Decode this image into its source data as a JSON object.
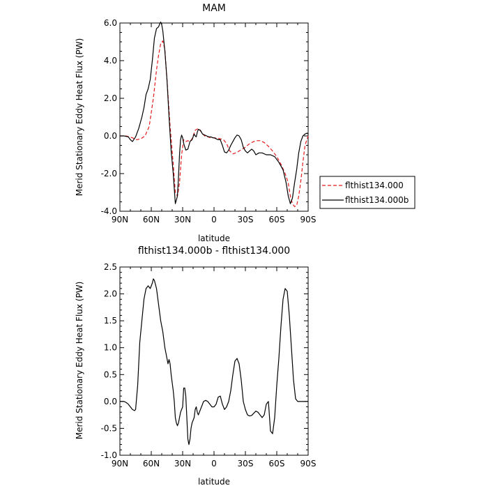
{
  "chart_data": [
    {
      "type": "line",
      "title": "MAM",
      "xlabel": "latitude",
      "ylabel": "Merid Stationary Eddy Heat Flux (PW)",
      "xlim": [
        90,
        -90
      ],
      "ylim": [
        -4,
        6
      ],
      "x_ticks": [
        90,
        60,
        30,
        0,
        -30,
        -60,
        -90
      ],
      "x_tick_labels": [
        "90N",
        "60N",
        "30N",
        "0",
        "30S",
        "60S",
        "90S"
      ],
      "y_ticks": [
        -4,
        -2,
        0,
        2,
        4,
        6
      ],
      "y_tick_labels": [
        "-4.0",
        "-2.0",
        "0.0",
        "2.0",
        "4.0",
        "6.0"
      ],
      "grid": false,
      "legend": {
        "placement": "right",
        "entries": [
          "flthist134.000",
          "flthist134.000b"
        ]
      },
      "series": [
        {
          "name": "flthist134.000",
          "color": "#e41a1c",
          "dash": "dashed",
          "x": [
            90,
            84,
            78,
            74,
            70,
            66,
            62,
            58,
            55,
            53,
            51,
            49,
            47,
            45,
            42,
            39,
            37,
            35,
            33,
            31,
            29,
            27,
            25,
            23,
            21,
            18,
            15,
            12,
            9,
            6,
            3,
            0,
            -3,
            -6,
            -9,
            -12,
            -15,
            -18,
            -21,
            -24,
            -27,
            -30,
            -33,
            -36,
            -40,
            -44,
            -48,
            -52,
            -56,
            -60,
            -64,
            -68,
            -71,
            -73,
            -75,
            -77,
            -79,
            -81,
            -83,
            -85,
            -87,
            -90
          ],
          "values": [
            0.0,
            0.0,
            -0.1,
            -0.2,
            -0.15,
            0.0,
            0.5,
            2.0,
            3.5,
            4.3,
            4.9,
            5.05,
            4.6,
            3.0,
            0.5,
            -1.5,
            -3.0,
            -3.2,
            -2.5,
            -1.0,
            -0.2,
            -0.3,
            -0.25,
            -0.3,
            -0.15,
            0.3,
            0.4,
            0.2,
            0.0,
            -0.05,
            -0.1,
            -0.1,
            -0.12,
            -0.15,
            -0.2,
            -0.4,
            -0.8,
            -0.95,
            -0.9,
            -0.8,
            -0.7,
            -0.6,
            -0.45,
            -0.35,
            -0.25,
            -0.25,
            -0.35,
            -0.55,
            -0.8,
            -1.1,
            -1.5,
            -2.0,
            -2.5,
            -3.2,
            -3.6,
            -3.75,
            -3.7,
            -3.2,
            -2.4,
            -1.4,
            -0.5,
            0.0
          ]
        },
        {
          "name": "flthist134.000b",
          "color": "#000000",
          "dash": "solid",
          "x": [
            90,
            86,
            82,
            80,
            78,
            75,
            72,
            69,
            67,
            65,
            63,
            61,
            59,
            57,
            55,
            53,
            52,
            51,
            50,
            49,
            47,
            45,
            43,
            41,
            39,
            37,
            35,
            34,
            33,
            32,
            31,
            30,
            29,
            27,
            25,
            23,
            21,
            19,
            18,
            17,
            16,
            15,
            13,
            11,
            9,
            7,
            5,
            3,
            1,
            0,
            -2,
            -4,
            -6,
            -8,
            -10,
            -12,
            -14,
            -16,
            -18,
            -20,
            -22,
            -24,
            -26,
            -28,
            -30,
            -32,
            -34,
            -36,
            -38,
            -40,
            -43,
            -46,
            -50,
            -54,
            -58,
            -62,
            -66,
            -69,
            -71,
            -73,
            -75,
            -77,
            -79,
            -81,
            -83,
            -85,
            -87,
            -89,
            -90
          ],
          "values": [
            0.0,
            0.0,
            -0.05,
            -0.2,
            -0.3,
            -0.05,
            0.4,
            1.0,
            1.5,
            2.2,
            2.5,
            3.0,
            4.0,
            5.2,
            5.7,
            5.8,
            5.95,
            6.05,
            5.9,
            5.6,
            4.5,
            3.0,
            1.0,
            -0.8,
            -2.0,
            -3.6,
            -3.2,
            -2.2,
            -1.0,
            -0.2,
            0.05,
            -0.1,
            -0.4,
            -0.75,
            -0.7,
            -0.3,
            -0.2,
            0.1,
            0.0,
            -0.05,
            0.2,
            0.35,
            0.3,
            0.1,
            0.05,
            0.0,
            -0.05,
            -0.05,
            -0.1,
            -0.1,
            -0.15,
            -0.2,
            -0.2,
            -0.5,
            -0.85,
            -0.9,
            -0.75,
            -0.5,
            -0.3,
            -0.1,
            0.05,
            0.0,
            -0.2,
            -0.6,
            -0.8,
            -0.9,
            -0.8,
            -0.7,
            -0.8,
            -1.0,
            -0.9,
            -0.9,
            -1.0,
            -1.0,
            -1.1,
            -1.4,
            -1.8,
            -2.5,
            -3.2,
            -3.6,
            -3.3,
            -2.5,
            -1.8,
            -0.9,
            -0.3,
            0.0,
            0.1,
            0.15,
            0.1
          ]
        }
      ]
    },
    {
      "type": "line",
      "title": "flthist134.000b - flthist134.000",
      "xlabel": "latitude",
      "ylabel": "Merid Stationary Eddy Heat Flux (PW)",
      "xlim": [
        90,
        -90
      ],
      "ylim": [
        -1,
        2.5
      ],
      "x_ticks": [
        90,
        60,
        30,
        0,
        -30,
        -60,
        -90
      ],
      "x_tick_labels": [
        "90N",
        "60N",
        "30N",
        "0",
        "30S",
        "60S",
        "90S"
      ],
      "y_ticks": [
        -1,
        -0.5,
        0,
        0.5,
        1,
        1.5,
        2,
        2.5
      ],
      "y_tick_labels": [
        "-1.0",
        "-0.5",
        "0.0",
        "0.5",
        "1.0",
        "1.5",
        "2.0",
        "2.5"
      ],
      "grid": false,
      "series": [
        {
          "color": "#000000",
          "dash": "solid",
          "x": [
            90,
            88,
            86,
            84,
            82,
            80,
            78,
            76,
            75,
            73,
            71,
            69,
            67,
            65,
            63,
            61,
            59,
            58,
            57,
            55,
            53,
            51,
            49,
            47,
            45,
            44,
            43,
            42,
            41,
            40,
            39,
            38,
            37,
            36,
            35,
            34,
            33,
            32,
            31,
            30,
            29,
            28,
            27,
            26,
            25,
            24,
            23,
            22,
            21,
            20,
            19,
            18,
            17,
            16,
            15,
            14,
            12,
            10,
            8,
            6,
            4,
            2,
            0,
            -2,
            -4,
            -6,
            -8,
            -10,
            -12,
            -14,
            -16,
            -18,
            -20,
            -22,
            -24,
            -26,
            -28,
            -30,
            -32,
            -34,
            -36,
            -38,
            -40,
            -42,
            -44,
            -46,
            -48,
            -50,
            -52,
            -54,
            -56,
            -58,
            -60,
            -62,
            -64,
            -66,
            -68,
            -70,
            -72,
            -74,
            -76,
            -78,
            -80,
            -82,
            -84,
            -86,
            -88,
            -90
          ],
          "values": [
            0.0,
            0.0,
            0.0,
            -0.02,
            -0.05,
            -0.1,
            -0.15,
            -0.17,
            -0.15,
            0.3,
            1.1,
            1.5,
            1.9,
            2.1,
            2.15,
            2.1,
            2.2,
            2.28,
            2.25,
            2.1,
            1.8,
            1.5,
            1.3,
            1.0,
            0.8,
            0.7,
            0.78,
            0.7,
            0.5,
            0.35,
            0.2,
            0.0,
            -0.3,
            -0.4,
            -0.45,
            -0.4,
            -0.3,
            -0.2,
            -0.15,
            -0.1,
            0.25,
            0.25,
            0.1,
            -0.3,
            -0.7,
            -0.8,
            -0.7,
            -0.5,
            -0.4,
            -0.35,
            -0.3,
            -0.15,
            -0.1,
            -0.2,
            -0.25,
            -0.2,
            -0.1,
            0.0,
            0.02,
            0.0,
            -0.05,
            -0.1,
            -0.1,
            -0.05,
            0.08,
            0.1,
            -0.05,
            -0.15,
            -0.1,
            0.0,
            0.2,
            0.5,
            0.75,
            0.8,
            0.7,
            0.4,
            0.0,
            -0.15,
            -0.25,
            -0.27,
            -0.26,
            -0.22,
            -0.18,
            -0.2,
            -0.25,
            -0.3,
            -0.25,
            -0.05,
            0.0,
            -0.55,
            -0.6,
            -0.3,
            0.3,
            0.8,
            1.4,
            1.9,
            2.1,
            2.05,
            1.6,
            1.0,
            0.4,
            0.05,
            0.0,
            0.0,
            0.0,
            0.0,
            0.0,
            0.0
          ]
        }
      ]
    }
  ]
}
